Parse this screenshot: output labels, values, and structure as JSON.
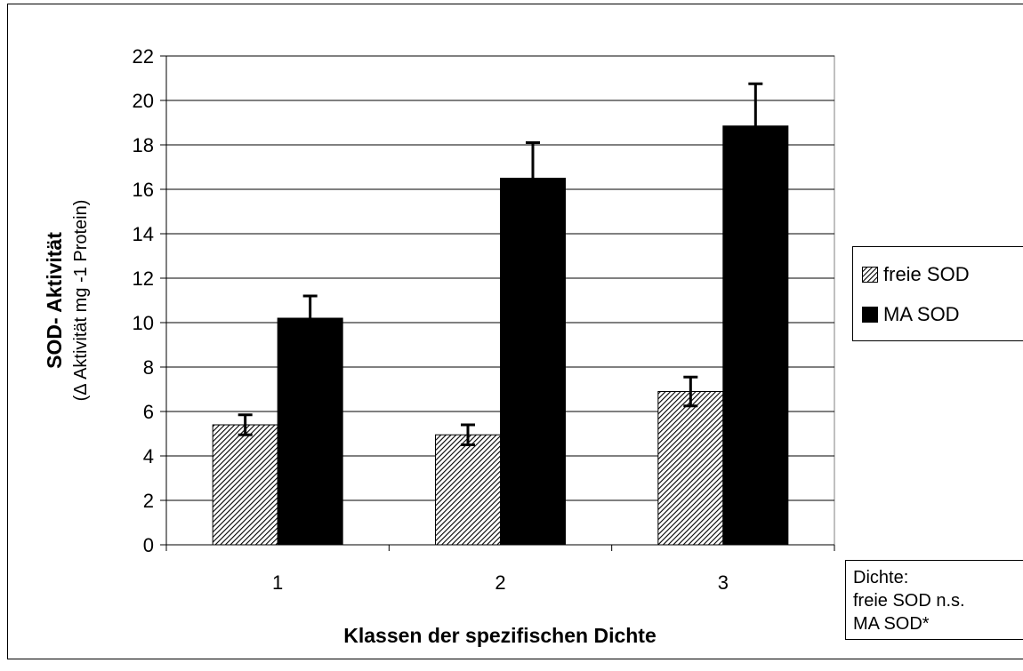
{
  "chart_data": {
    "type": "bar",
    "categories": [
      "1",
      "2",
      "3"
    ],
    "series": [
      {
        "name": "freie SOD",
        "values": [
          5.4,
          4.95,
          6.9
        ],
        "errors": [
          0.45,
          0.45,
          0.65
        ],
        "pattern": "hatched"
      },
      {
        "name": "MA SOD",
        "values": [
          10.2,
          16.5,
          18.85
        ],
        "errors": [
          1.0,
          1.6,
          1.9
        ],
        "color": "#000000"
      }
    ],
    "title": "",
    "xlabel": "Klassen der spezifischen Dichte",
    "ylabel": "SOD- Aktivität",
    "ylabel_sub": "(Δ Aktivität  mg -1 Protein)",
    "ylim": [
      0,
      22
    ],
    "yticks": [
      "0",
      "2",
      "4",
      "6",
      "8",
      "10",
      "12",
      "14",
      "16",
      "18",
      "20",
      "22"
    ],
    "grid": true,
    "legend_position": "right"
  },
  "legend": {
    "items": [
      "freie SOD",
      "MA SOD"
    ]
  },
  "note": {
    "lines": [
      "Dichte:",
      "freie SOD n.s.",
      "MA SOD*"
    ]
  }
}
